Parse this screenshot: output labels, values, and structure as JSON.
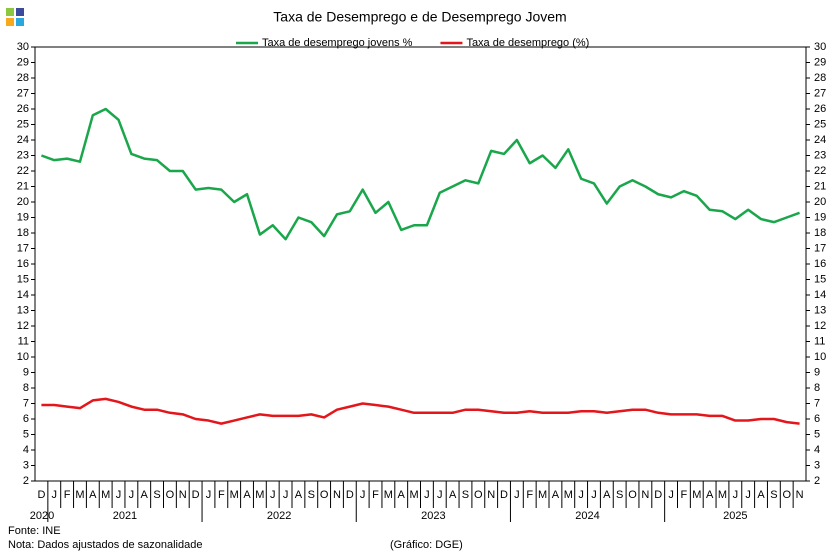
{
  "chart_data": {
    "type": "line",
    "title": "Taxa de Desemprego e de Desemprego Jovem",
    "categories": [
      "D",
      "J",
      "F",
      "M",
      "A",
      "M",
      "J",
      "J",
      "A",
      "S",
      "O",
      "N",
      "D",
      "J",
      "F",
      "M",
      "A",
      "M",
      "J",
      "J",
      "A",
      "S",
      "O",
      "N",
      "D",
      "J",
      "F",
      "M",
      "A",
      "M",
      "J",
      "J",
      "A",
      "S",
      "O",
      "N",
      "D",
      "J",
      "F",
      "M",
      "A",
      "M",
      "J",
      "J",
      "A",
      "S",
      "O",
      "N",
      "D",
      "J",
      "F",
      "M",
      "A",
      "M",
      "J",
      "J",
      "A",
      "S",
      "O",
      "N"
    ],
    "year_groups": [
      "2020",
      "2021",
      "2022",
      "2023",
      "2024",
      "2025"
    ],
    "series": [
      {
        "name": "Taxa de desemprego jovens %",
        "color": "#1aa64b",
        "values": [
          23.0,
          22.7,
          22.8,
          22.6,
          25.6,
          26.0,
          25.3,
          23.1,
          22.8,
          22.7,
          22.0,
          22.0,
          20.8,
          20.9,
          20.8,
          20.0,
          20.5,
          17.9,
          18.5,
          17.6,
          19.0,
          18.7,
          17.8,
          19.2,
          19.4,
          20.8,
          19.3,
          20.0,
          18.2,
          18.5,
          18.5,
          20.6,
          21.0,
          21.4,
          21.2,
          23.3,
          23.1,
          24.0,
          22.5,
          23.0,
          22.2,
          23.4,
          21.5,
          21.2,
          19.9,
          21.0,
          21.4,
          21.0,
          20.5,
          20.3,
          20.7,
          20.4,
          19.5,
          19.4,
          18.9,
          19.5,
          18.9,
          18.7,
          19.0,
          19.3
        ]
      },
      {
        "name": "Taxa de desemprego (%)",
        "color": "#e3161b",
        "values": [
          6.9,
          6.9,
          6.8,
          6.7,
          7.2,
          7.3,
          7.1,
          6.8,
          6.6,
          6.6,
          6.4,
          6.3,
          6.0,
          5.9,
          5.7,
          5.9,
          6.1,
          6.3,
          6.2,
          6.2,
          6.2,
          6.3,
          6.1,
          6.6,
          6.8,
          7.0,
          6.9,
          6.8,
          6.6,
          6.4,
          6.4,
          6.4,
          6.4,
          6.6,
          6.6,
          6.5,
          6.4,
          6.4,
          6.5,
          6.4,
          6.4,
          6.4,
          6.5,
          6.5,
          6.4,
          6.5,
          6.6,
          6.6,
          6.4,
          6.3,
          6.3,
          6.3,
          6.2,
          6.2,
          5.9,
          5.9,
          6.0,
          6.0,
          5.8,
          5.7
        ]
      }
    ],
    "ylim": [
      2,
      30
    ],
    "yticks": [
      2,
      3,
      4,
      5,
      6,
      7,
      8,
      9,
      10,
      11,
      12,
      13,
      14,
      15,
      16,
      17,
      18,
      19,
      20,
      21,
      22,
      23,
      24,
      25,
      26,
      27,
      28,
      29,
      30
    ],
    "y2lim": [
      2,
      30
    ],
    "y2ticks": [
      2,
      3,
      4,
      5,
      6,
      7,
      8,
      9,
      10,
      11,
      12,
      13,
      14,
      15,
      16,
      17,
      18,
      19,
      20,
      21,
      22,
      23,
      24,
      25,
      26,
      27,
      28,
      29,
      30
    ],
    "grid": false,
    "legend": "top",
    "source": "Fonte: INE",
    "note": "Nota: Dados ajustados de sazonalidade",
    "credit": "(Gráfico: DGE)"
  }
}
